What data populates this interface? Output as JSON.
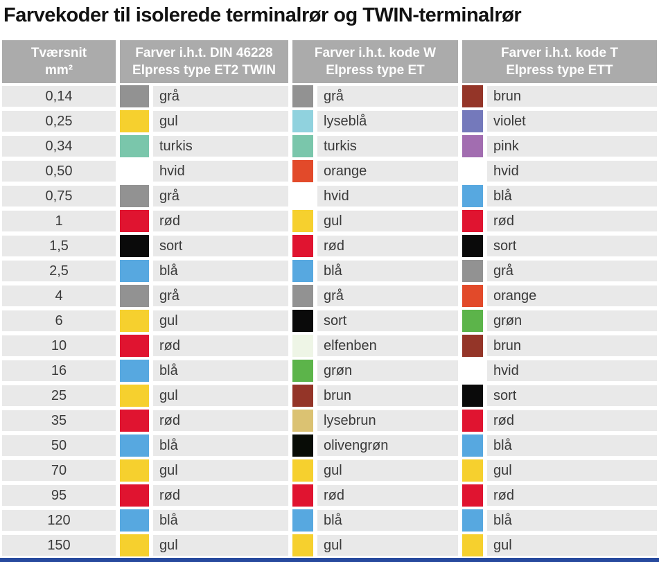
{
  "title": "Farvekoder til isolerede terminalrør og TWIN-terminalrør",
  "colors": {
    "header_bg": "#ababab",
    "row_bg": "#e9e9e9",
    "bottom_bar": "#274a9e",
    "header_text": "#ffffff",
    "body_text": "#3a3a3a"
  },
  "table": {
    "headers": [
      {
        "line1": "Tværsnit",
        "line2": "mm²"
      },
      {
        "line1": "Farver i.h.t. DIN 46228",
        "line2": "Elpress type ET2 TWIN"
      },
      {
        "line1": "Farver i.h.t. kode W",
        "line2": "Elpress type ET"
      },
      {
        "line1": "Farver i.h.t. kode T",
        "line2": "Elpress type ETT"
      }
    ],
    "palette": {
      "grå": "#929292",
      "gul": "#f6d02e",
      "turkis": "#7ac6ab",
      "hvid": "#ffffff",
      "rød": "#e01430",
      "sort": "#0a0a0a",
      "blå": "#57a8e0",
      "orange": "#e24a2a",
      "lyseblå": "#90d2de",
      "brun": "#943528",
      "violet": "#7479bb",
      "pink": "#a26db0",
      "grøn": "#5cb44a",
      "elfenben": "#eef5e6",
      "lysebrun": "#dbc272",
      "olivengrøn": "#080c06"
    },
    "rows": [
      {
        "size": "0,14",
        "din": "grå",
        "w": "grå",
        "t": "brun"
      },
      {
        "size": "0,25",
        "din": "gul",
        "w": "lyseblå",
        "t": "violet"
      },
      {
        "size": "0,34",
        "din": "turkis",
        "w": "turkis",
        "t": "pink"
      },
      {
        "size": "0,50",
        "din": "hvid",
        "w": "orange",
        "t": "hvid"
      },
      {
        "size": "0,75",
        "din": "grå",
        "w": "hvid",
        "t": "blå"
      },
      {
        "size": "1",
        "din": "rød",
        "w": "gul",
        "t": "rød"
      },
      {
        "size": "1,5",
        "din": "sort",
        "w": "rød",
        "t": "sort"
      },
      {
        "size": "2,5",
        "din": "blå",
        "w": "blå",
        "t": "grå"
      },
      {
        "size": "4",
        "din": "grå",
        "w": "grå",
        "t": "orange"
      },
      {
        "size": "6",
        "din": "gul",
        "w": "sort",
        "t": "grøn"
      },
      {
        "size": "10",
        "din": "rød",
        "w": "elfenben",
        "t": "brun"
      },
      {
        "size": "16",
        "din": "blå",
        "w": "grøn",
        "t": "hvid"
      },
      {
        "size": "25",
        "din": "gul",
        "w": "brun",
        "t": "sort"
      },
      {
        "size": "35",
        "din": "rød",
        "w": "lysebrun",
        "t": "rød"
      },
      {
        "size": "50",
        "din": "blå",
        "w": "olivengrøn",
        "t": "blå"
      },
      {
        "size": "70",
        "din": "gul",
        "w": "gul",
        "t": "gul"
      },
      {
        "size": "95",
        "din": "rød",
        "w": "rød",
        "t": "rød"
      },
      {
        "size": "120",
        "din": "blå",
        "w": "blå",
        "t": "blå"
      },
      {
        "size": "150",
        "din": "gul",
        "w": "gul",
        "t": "gul"
      }
    ]
  }
}
